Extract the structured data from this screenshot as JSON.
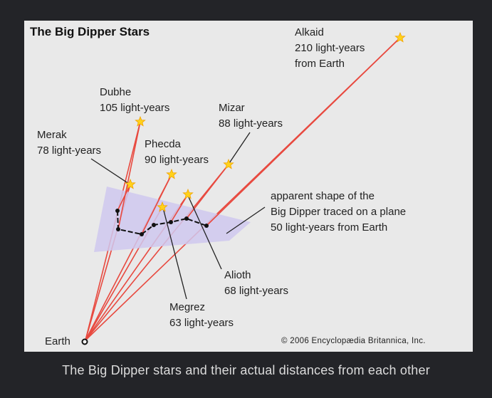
{
  "title": "The Big Dipper Stars",
  "stars": [
    {
      "name": "Alkaid",
      "distance": "210 light-years",
      "extra": "from Earth"
    },
    {
      "name": "Dubhe",
      "distance": "105 light-years"
    },
    {
      "name": "Merak",
      "distance": "78 light-years"
    },
    {
      "name": "Phecda",
      "distance": "90 light-years"
    },
    {
      "name": "Mizar",
      "distance": "88 light-years"
    },
    {
      "name": "Alioth",
      "distance": "68 light-years"
    },
    {
      "name": "Megrez",
      "distance": "63 light-years"
    }
  ],
  "plane_label": [
    "apparent shape of the",
    "Big Dipper traced on a plane",
    "50 light-years from Earth"
  ],
  "earth_label": "Earth",
  "copyright": "© 2006 Encyclopædia Britannica, Inc.",
  "caption": "The Big Dipper stars and their actual distances from each other",
  "colors": {
    "sight_line": "#e8493f",
    "star": "#ffd21a",
    "plane": "#cfc8ee",
    "background": "#232428"
  }
}
